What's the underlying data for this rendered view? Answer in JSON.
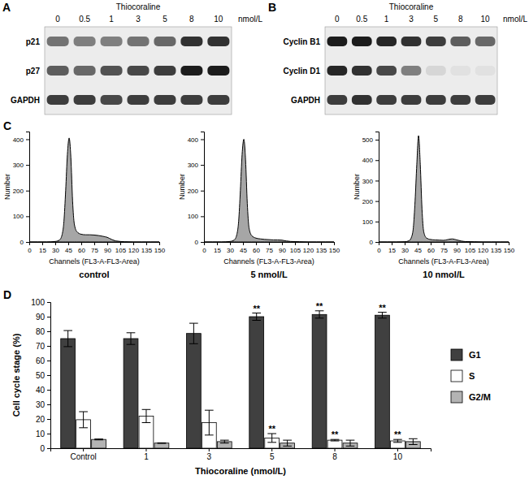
{
  "chart_data": [
    {
      "type": "blot",
      "title": "A",
      "header": "Thiocoraline",
      "unit": "nmol/L",
      "categories": [
        0,
        0.5,
        1,
        3,
        5,
        8,
        10
      ],
      "series": [
        {
          "name": "p21",
          "values": [
            0.55,
            0.5,
            0.5,
            0.55,
            0.6,
            0.85,
            0.85
          ]
        },
        {
          "name": "p27",
          "values": [
            0.65,
            0.6,
            0.7,
            0.75,
            0.8,
            0.95,
            0.95
          ]
        },
        {
          "name": "GAPDH",
          "values": [
            0.8,
            0.8,
            0.75,
            0.8,
            0.8,
            0.8,
            0.8
          ]
        }
      ]
    },
    {
      "type": "blot",
      "title": "B",
      "header": "Thiocoraline",
      "unit": "nmol/L",
      "categories": [
        0,
        0.5,
        1,
        3,
        5,
        8,
        10
      ],
      "series": [
        {
          "name": "Cyclin B1",
          "values": [
            0.95,
            0.95,
            0.9,
            0.85,
            0.8,
            0.65,
            0.6
          ]
        },
        {
          "name": "Cyclin D1",
          "values": [
            0.9,
            0.85,
            0.75,
            0.5,
            0.1,
            0.05,
            0.05
          ]
        },
        {
          "name": "GAPDH",
          "values": [
            0.8,
            0.85,
            0.8,
            0.8,
            0.8,
            0.8,
            0.8
          ]
        }
      ]
    },
    {
      "type": "area",
      "title": "C",
      "caption": "control",
      "x_label": "Channels (FL3-A-FL3-Area)",
      "y_label": "Number",
      "x": [
        0,
        10,
        20,
        30,
        35,
        38,
        40,
        42,
        44,
        46,
        48,
        50,
        52,
        55,
        60,
        65,
        70,
        75,
        80,
        85,
        90,
        95,
        100,
        110,
        120,
        130,
        140,
        150
      ],
      "values": [
        0,
        0,
        0,
        2,
        8,
        30,
        80,
        200,
        340,
        405,
        330,
        160,
        70,
        40,
        30,
        28,
        28,
        27,
        25,
        22,
        18,
        10,
        4,
        1,
        0,
        0,
        0,
        0
      ],
      "color": "#a6a6a6",
      "xlim": [
        0,
        150
      ],
      "xticks": [
        0,
        15,
        30,
        45,
        60,
        75,
        90,
        105,
        120,
        135,
        150
      ],
      "ylim": [
        0,
        430
      ],
      "yticks": [
        0,
        100,
        200,
        300,
        400
      ]
    },
    {
      "type": "area",
      "caption": "5 nmol/L",
      "x_label": "Channels (FL3-A-FL3-Area)",
      "y_label": "Number",
      "x": [
        0,
        10,
        20,
        30,
        35,
        38,
        40,
        42,
        44,
        46,
        48,
        50,
        52,
        55,
        60,
        65,
        70,
        75,
        80,
        85,
        90,
        95,
        100,
        110,
        120,
        130,
        140,
        150
      ],
      "values": [
        0,
        0,
        0,
        2,
        8,
        30,
        80,
        200,
        340,
        400,
        320,
        150,
        55,
        25,
        15,
        12,
        10,
        9,
        8,
        8,
        7,
        4,
        2,
        1,
        0,
        0,
        0,
        0
      ],
      "color": "#a6a6a6",
      "xlim": [
        0,
        150
      ],
      "xticks": [
        0,
        15,
        30,
        45,
        60,
        75,
        90,
        105,
        120,
        135,
        150
      ],
      "ylim": [
        0,
        430
      ],
      "yticks": [
        0,
        100,
        200,
        300,
        400
      ]
    },
    {
      "type": "area",
      "caption": "10 nmol/L",
      "x_label": "Channels (FL3-A-FL3-Area)",
      "y_label": "Number",
      "x": [
        0,
        10,
        20,
        30,
        35,
        38,
        40,
        42,
        44,
        46,
        48,
        50,
        52,
        55,
        60,
        65,
        70,
        75,
        80,
        85,
        90,
        95,
        100,
        110,
        120,
        130,
        140,
        150
      ],
      "values": [
        0,
        0,
        0,
        1,
        6,
        25,
        70,
        200,
        380,
        520,
        380,
        160,
        50,
        20,
        12,
        10,
        9,
        8,
        12,
        15,
        10,
        5,
        2,
        1,
        0,
        0,
        0,
        0
      ],
      "color": "#a6a6a6",
      "xlim": [
        0,
        150
      ],
      "xticks": [
        0,
        15,
        30,
        45,
        60,
        75,
        90,
        105,
        120,
        135,
        150
      ],
      "ylim": [
        0,
        540
      ],
      "yticks": [
        0,
        100,
        200,
        300,
        400,
        500
      ]
    },
    {
      "type": "bar",
      "title": "D",
      "x_label": "Thiocoraline (nmol/L)",
      "y_label": "Cell cycle stage (%)",
      "categories": [
        "Control",
        "1",
        "3",
        "5",
        "8",
        "10"
      ],
      "series": [
        {
          "name": "G1",
          "color": "#404040",
          "values": [
            75,
            75,
            78.5,
            90,
            91.5,
            91
          ],
          "errors": [
            5.5,
            4,
            7,
            2.5,
            2.5,
            2
          ],
          "significance": [
            null,
            null,
            null,
            "**",
            "**",
            "**"
          ]
        },
        {
          "name": "S",
          "color": "#ffffff",
          "values": [
            19.5,
            22,
            17.5,
            7,
            5.5,
            5
          ],
          "errors": [
            5.5,
            4.5,
            8.5,
            3,
            0.5,
            1
          ],
          "significance": [
            null,
            null,
            null,
            "**",
            "**",
            "**"
          ]
        },
        {
          "name": "G2/M",
          "color": "#b3b3b3",
          "values": [
            6,
            3.5,
            4.5,
            3.5,
            3.5,
            4.5
          ],
          "errors": [
            0.3,
            0.2,
            1,
            2,
            2,
            2
          ]
        }
      ],
      "ylim": [
        0,
        100
      ],
      "yticks": [
        0,
        10,
        20,
        30,
        40,
        50,
        60,
        70,
        80,
        90,
        100
      ],
      "grid": false,
      "legend": "right"
    }
  ]
}
